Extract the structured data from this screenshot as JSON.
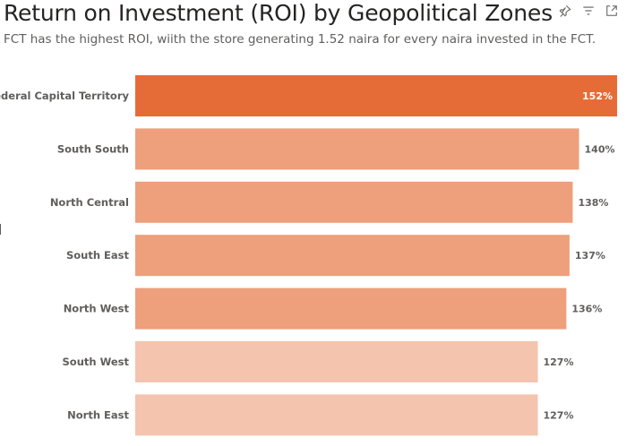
{
  "header": {
    "title": "Return on Investment (ROI) by Geopolitical Zones",
    "subtitle": "FCT has the highest ROI, wiith the store generating 1.52 naira for every naira invested in the FCT."
  },
  "visual_header_icons": [
    "pin-icon",
    "filter-icon",
    "focus-mode-icon"
  ],
  "chart_data": {
    "type": "bar",
    "orientation": "horizontal",
    "categories": [
      "Federal Capital Territory",
      "South South",
      "North Central",
      "South East",
      "North West",
      "South West",
      "North East"
    ],
    "values": [
      152,
      140,
      138,
      137,
      136,
      127,
      127
    ],
    "value_labels": [
      "152%",
      "140%",
      "138%",
      "137%",
      "136%",
      "127%",
      "127%"
    ],
    "xlim": [
      0,
      152
    ],
    "grid": false,
    "legend": "none",
    "colors": {
      "top": "#e66c37",
      "mid": "#ee9f7b",
      "low": "#f4c4ae",
      "category_label": "#605e5c",
      "value_label_outside": "#605e5c",
      "value_label_inside": "#ffffff"
    }
  }
}
